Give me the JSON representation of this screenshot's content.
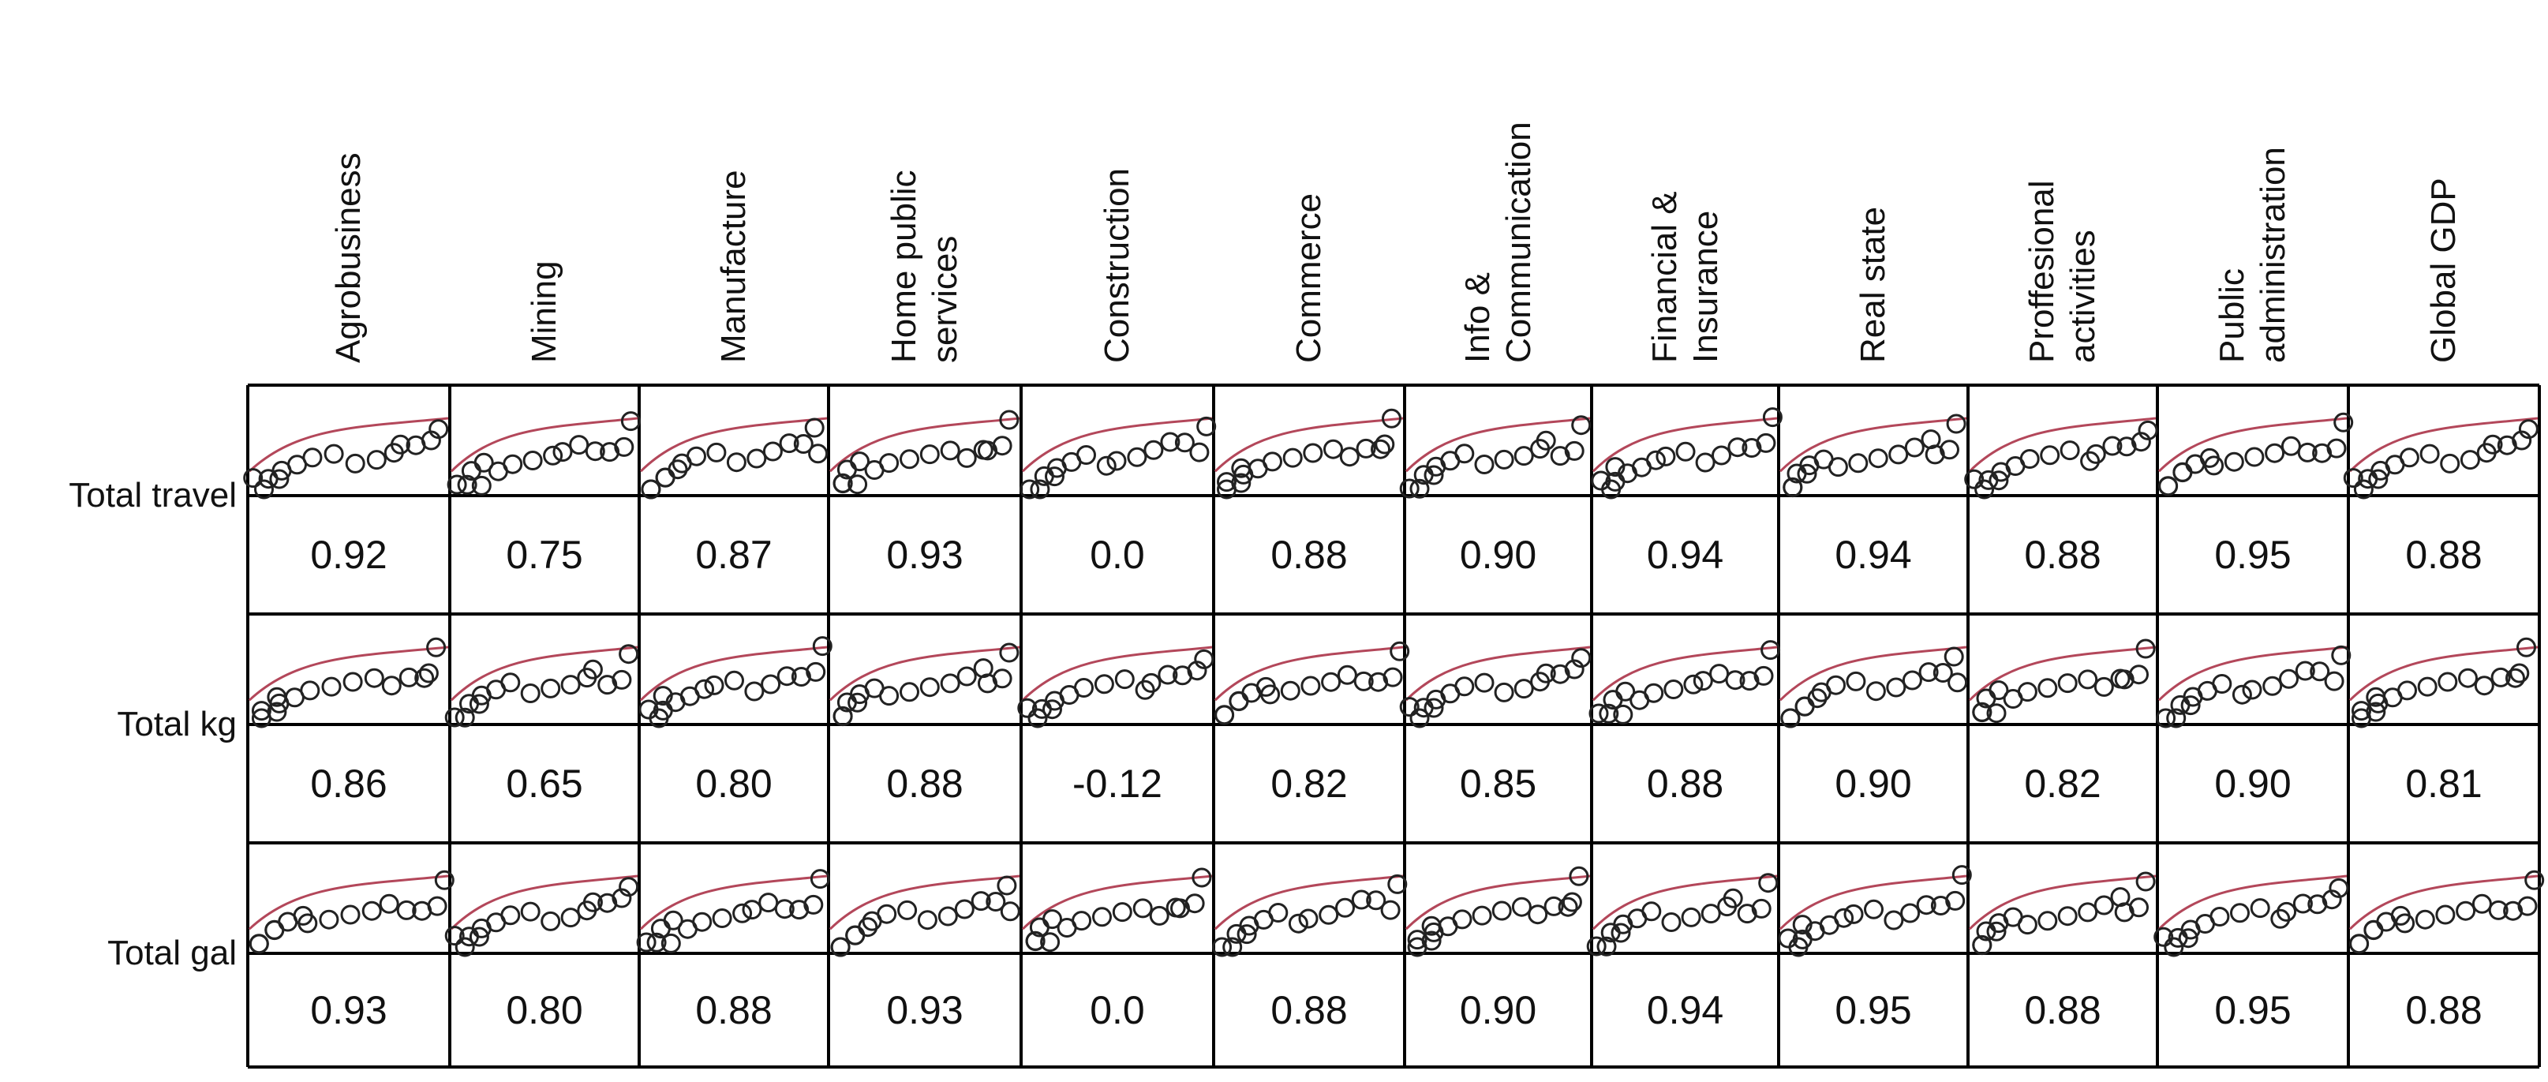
{
  "chart_data": {
    "type": "scatter-correlation-matrix",
    "columns": [
      [
        "Agrobusiness"
      ],
      [
        "Mining"
      ],
      [
        "Manufacture"
      ],
      [
        "Home public",
        "services"
      ],
      [
        "Construction"
      ],
      [
        "Commerce"
      ],
      [
        "Info &",
        "Communication"
      ],
      [
        "Financial &",
        "Insurance"
      ],
      [
        "Real state"
      ],
      [
        "Proffesional",
        "activities"
      ],
      [
        "Public",
        "administration"
      ],
      [
        "Global GDP"
      ]
    ],
    "rows": [
      {
        "label": "Total travel",
        "correlations": [
          "0.92",
          "0.75",
          "0.87",
          "0.93",
          "0.0",
          "0.88",
          "0.90",
          "0.94",
          "0.94",
          "0.88",
          "0.95",
          "0.88"
        ]
      },
      {
        "label": "Total kg",
        "correlations": [
          "0.86",
          "0.65",
          "0.80",
          "0.88",
          "-0.12",
          "0.82",
          "0.85",
          "0.88",
          "0.90",
          "0.82",
          "0.90",
          "0.81"
        ]
      },
      {
        "label": "Total gal",
        "correlations": [
          "0.93",
          "0.80",
          "0.88",
          "0.93",
          "0.0",
          "0.88",
          "0.90",
          "0.94",
          "0.95",
          "0.88",
          "0.95",
          "0.88"
        ]
      }
    ],
    "scatter_points_normalized": [
      [
        0.05,
        0.4
      ],
      [
        0.12,
        0.3
      ],
      [
        0.18,
        0.25
      ],
      [
        0.25,
        0.22
      ],
      [
        0.32,
        0.18
      ],
      [
        0.42,
        0.17
      ],
      [
        0.52,
        0.15
      ],
      [
        0.62,
        0.14
      ],
      [
        0.7,
        0.1
      ],
      [
        0.78,
        0.05
      ],
      [
        0.85,
        0.08
      ],
      [
        0.92,
        0.06
      ],
      [
        0.95,
        -0.15
      ],
      [
        0.08,
        0.45
      ],
      [
        0.15,
        0.35
      ]
    ],
    "fit_color": "#b3475a",
    "point_color": "#222222"
  }
}
